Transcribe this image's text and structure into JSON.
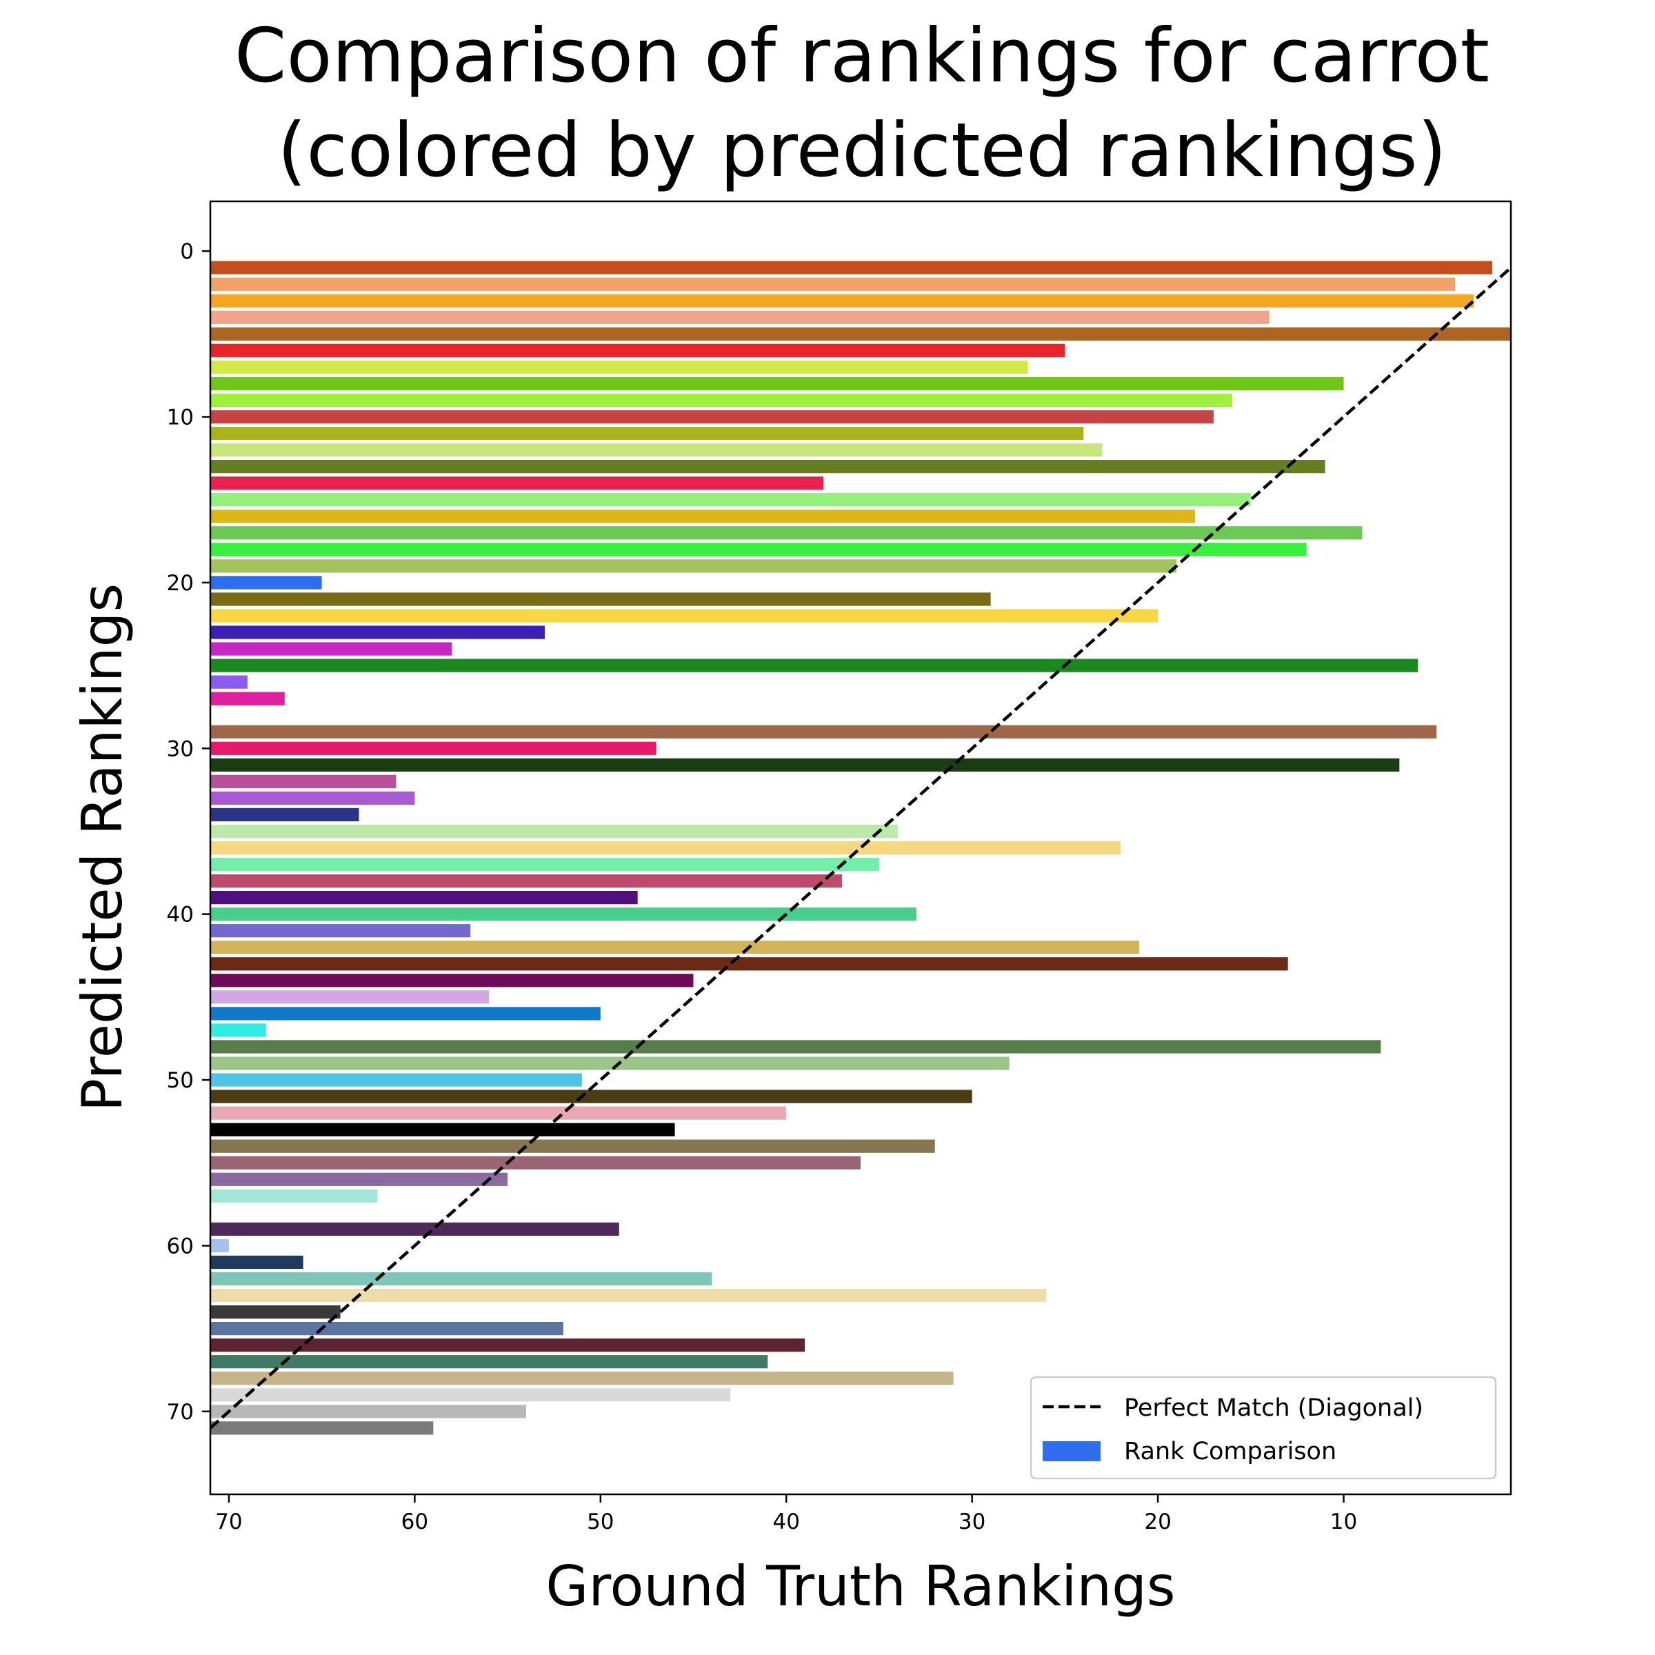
{
  "chart_data": {
    "type": "bar",
    "orientation": "horizontal",
    "title_lines": [
      "Comparison of rankings for carrot",
      "(colored by predicted rankings)"
    ],
    "xlabel": "Ground Truth Rankings",
    "ylabel": "Predicted Rankings",
    "xlim": [
      71,
      1
    ],
    "ylim": [
      75,
      -3
    ],
    "xticks": [
      70,
      60,
      50,
      40,
      30,
      20,
      10
    ],
    "yticks": [
      0,
      10,
      20,
      30,
      40,
      50,
      60,
      70
    ],
    "grid": false,
    "legend": {
      "position": "lower-right",
      "entries": [
        {
          "label": "Perfect Match (Diagonal)",
          "type": "dashed-line",
          "color": "#000000"
        },
        {
          "label": "Rank Comparison",
          "type": "patch",
          "color": "#2f6fef"
        }
      ]
    },
    "diagonal": {
      "from": [
        71,
        71
      ],
      "to": [
        1,
        1
      ],
      "style": "dashed",
      "color": "#000000"
    },
    "bars": [
      {
        "predicted": 1,
        "ground_truth": 2,
        "color": "#c44f1d"
      },
      {
        "predicted": 2,
        "ground_truth": 4,
        "color": "#f0a267"
      },
      {
        "predicted": 3,
        "ground_truth": 3,
        "color": "#f5a623"
      },
      {
        "predicted": 4,
        "ground_truth": 14,
        "color": "#f0a48a"
      },
      {
        "predicted": 5,
        "ground_truth": 1,
        "color": "#ad6523"
      },
      {
        "predicted": 6,
        "ground_truth": 25,
        "color": "#e8262a"
      },
      {
        "predicted": 7,
        "ground_truth": 27,
        "color": "#d4e84a"
      },
      {
        "predicted": 8,
        "ground_truth": 10,
        "color": "#6dc714"
      },
      {
        "predicted": 9,
        "ground_truth": 16,
        "color": "#9ef03c"
      },
      {
        "predicted": 10,
        "ground_truth": 17,
        "color": "#c84444"
      },
      {
        "predicted": 11,
        "ground_truth": 24,
        "color": "#a8b41a"
      },
      {
        "predicted": 12,
        "ground_truth": 23,
        "color": "#c6e67c"
      },
      {
        "predicted": 13,
        "ground_truth": 11,
        "color": "#647f22"
      },
      {
        "predicted": 14,
        "ground_truth": 38,
        "color": "#e8234f"
      },
      {
        "predicted": 15,
        "ground_truth": 15,
        "color": "#94ef7c"
      },
      {
        "predicted": 16,
        "ground_truth": 18,
        "color": "#d9b818"
      },
      {
        "predicted": 17,
        "ground_truth": 9,
        "color": "#6ec855"
      },
      {
        "predicted": 18,
        "ground_truth": 12,
        "color": "#3af03f"
      },
      {
        "predicted": 19,
        "ground_truth": 19,
        "color": "#a0c45a"
      },
      {
        "predicted": 20,
        "ground_truth": 65,
        "color": "#2b6ef2"
      },
      {
        "predicted": 21,
        "ground_truth": 29,
        "color": "#7a6a14"
      },
      {
        "predicted": 22,
        "ground_truth": 20,
        "color": "#f7d842"
      },
      {
        "predicted": 23,
        "ground_truth": 53,
        "color": "#3a1fb8"
      },
      {
        "predicted": 24,
        "ground_truth": 58,
        "color": "#c725c4"
      },
      {
        "predicted": 25,
        "ground_truth": 6,
        "color": "#1a8a1f"
      },
      {
        "predicted": 26,
        "ground_truth": 69,
        "color": "#8b5cf0"
      },
      {
        "predicted": 27,
        "ground_truth": 67,
        "color": "#e01f9e"
      },
      {
        "predicted": 29,
        "ground_truth": 5,
        "color": "#a0664a"
      },
      {
        "predicted": 30,
        "ground_truth": 47,
        "color": "#e8186a"
      },
      {
        "predicted": 31,
        "ground_truth": 7,
        "color": "#1b3d14"
      },
      {
        "predicted": 32,
        "ground_truth": 61,
        "color": "#b8509a"
      },
      {
        "predicted": 33,
        "ground_truth": 60,
        "color": "#a65cd0"
      },
      {
        "predicted": 34,
        "ground_truth": 63,
        "color": "#2c3488"
      },
      {
        "predicted": 35,
        "ground_truth": 34,
        "color": "#bce9a9"
      },
      {
        "predicted": 36,
        "ground_truth": 22,
        "color": "#f5d87e"
      },
      {
        "predicted": 37,
        "ground_truth": 35,
        "color": "#72efa8"
      },
      {
        "predicted": 38,
        "ground_truth": 37,
        "color": "#be4a6e"
      },
      {
        "predicted": 39,
        "ground_truth": 48,
        "color": "#520f7e"
      },
      {
        "predicted": 40,
        "ground_truth": 33,
        "color": "#48cd8a"
      },
      {
        "predicted": 41,
        "ground_truth": 57,
        "color": "#7467ce"
      },
      {
        "predicted": 42,
        "ground_truth": 21,
        "color": "#d2b45a"
      },
      {
        "predicted": 43,
        "ground_truth": 13,
        "color": "#6a2a14"
      },
      {
        "predicted": 44,
        "ground_truth": 45,
        "color": "#6f0a5a"
      },
      {
        "predicted": 45,
        "ground_truth": 56,
        "color": "#d2a8e4"
      },
      {
        "predicted": 46,
        "ground_truth": 50,
        "color": "#0f7acb"
      },
      {
        "predicted": 47,
        "ground_truth": 68,
        "color": "#2fede0"
      },
      {
        "predicted": 48,
        "ground_truth": 8,
        "color": "#567e4a"
      },
      {
        "predicted": 49,
        "ground_truth": 28,
        "color": "#9cc58a"
      },
      {
        "predicted": 50,
        "ground_truth": 51,
        "color": "#4cc4e8"
      },
      {
        "predicted": 51,
        "ground_truth": 30,
        "color": "#4a3d14"
      },
      {
        "predicted": 52,
        "ground_truth": 40,
        "color": "#e8a8b4"
      },
      {
        "predicted": 53,
        "ground_truth": 46,
        "color": "#000000"
      },
      {
        "predicted": 54,
        "ground_truth": 32,
        "color": "#857650"
      },
      {
        "predicted": 55,
        "ground_truth": 36,
        "color": "#9a6474"
      },
      {
        "predicted": 56,
        "ground_truth": 55,
        "color": "#8a6aa0"
      },
      {
        "predicted": 57,
        "ground_truth": 62,
        "color": "#a2e6d8"
      },
      {
        "predicted": 59,
        "ground_truth": 49,
        "color": "#4e2a5a"
      },
      {
        "predicted": 60,
        "ground_truth": 70,
        "color": "#a8c0ee"
      },
      {
        "predicted": 61,
        "ground_truth": 66,
        "color": "#1e3a5c"
      },
      {
        "predicted": 62,
        "ground_truth": 44,
        "color": "#80c6b8"
      },
      {
        "predicted": 63,
        "ground_truth": 26,
        "color": "#eedcaa"
      },
      {
        "predicted": 64,
        "ground_truth": 64,
        "color": "#3a3a3a"
      },
      {
        "predicted": 65,
        "ground_truth": 52,
        "color": "#5c75a0"
      },
      {
        "predicted": 66,
        "ground_truth": 39,
        "color": "#5c2434"
      },
      {
        "predicted": 67,
        "ground_truth": 41,
        "color": "#3e7a66"
      },
      {
        "predicted": 68,
        "ground_truth": 31,
        "color": "#c6b489"
      },
      {
        "predicted": 69,
        "ground_truth": 43,
        "color": "#d8d8d8"
      },
      {
        "predicted": 70,
        "ground_truth": 54,
        "color": "#b8b8b8"
      },
      {
        "predicted": 71,
        "ground_truth": 59,
        "color": "#7a7a7a"
      }
    ]
  }
}
